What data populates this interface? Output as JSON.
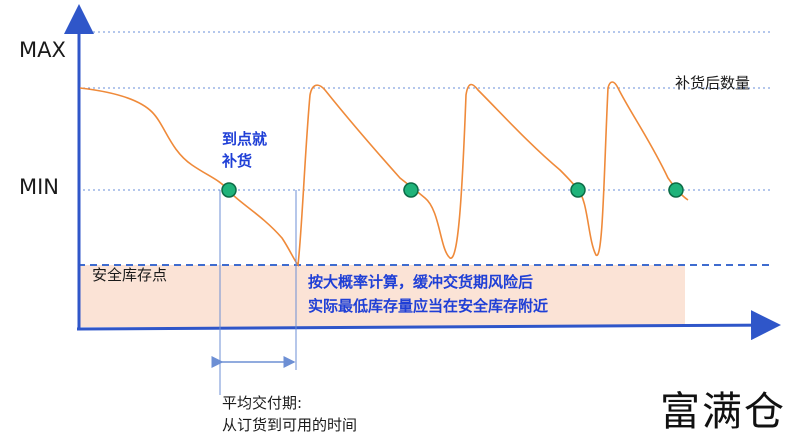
{
  "labels": {
    "max": "MAX",
    "min": "MIN",
    "replenish_qty": "补货后数量",
    "reorder_point": "到点就\n补货",
    "safety_stock": "安全库存点",
    "note_line1": "按大概率计算，缓冲交货期风险后",
    "note_line2": "实际最低库存量应当在安全库存附近",
    "lead_time_line1": "平均交付期:",
    "lead_time_line2": "从订货到可用的时间",
    "brand": "富满仓"
  },
  "colors": {
    "axis": "#2f56c9",
    "guide_dotted": "#6a8fd8",
    "safety_dashed": "#3f6ccf",
    "safety_zone": "#fbe3d6",
    "curve": "#ef8a3a",
    "reorder_dot_fill": "#1fb37a",
    "reorder_dot_stroke": "#0b6b46",
    "lead_time_line": "#6d8fd4",
    "note_text": "#1f3fd6"
  }
}
